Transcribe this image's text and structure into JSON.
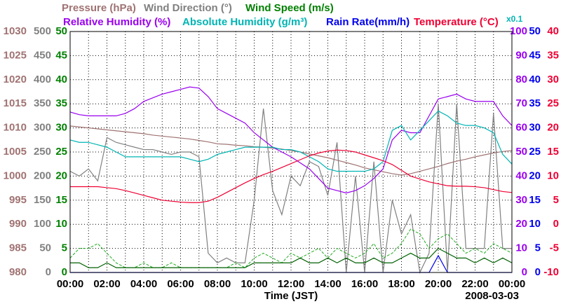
{
  "chart_data": {
    "type": "line",
    "xlabel": "Time (JST)",
    "date": "2008-03-03",
    "annotation": "x0.1",
    "grid": true,
    "x": [
      0,
      0.5,
      1,
      1.5,
      2,
      2.5,
      3,
      3.5,
      4,
      4.5,
      5,
      5.5,
      6,
      6.5,
      7,
      7.5,
      8,
      8.5,
      9,
      9.5,
      10,
      10.5,
      11,
      11.5,
      12,
      12.5,
      13,
      13.5,
      14,
      14.5,
      15,
      15.5,
      16,
      16.5,
      17,
      17.5,
      18,
      18.5,
      19,
      19.5,
      20,
      20.5,
      21,
      21.5,
      22,
      22.5,
      23,
      23.5,
      24
    ],
    "xlim": [
      0,
      24
    ],
    "xticks": [
      {
        "value": 0,
        "label": "00:00"
      },
      {
        "value": 2,
        "label": "02:00"
      },
      {
        "value": 4,
        "label": "04:00"
      },
      {
        "value": 6,
        "label": "06:00"
      },
      {
        "value": 8,
        "label": "08:00"
      },
      {
        "value": 10,
        "label": "10:00"
      },
      {
        "value": 12,
        "label": "12:00"
      },
      {
        "value": 14,
        "label": "14:00"
      },
      {
        "value": 16,
        "label": "16:00"
      },
      {
        "value": 18,
        "label": "18:00"
      },
      {
        "value": 20,
        "label": "20:00"
      },
      {
        "value": 22,
        "label": "22:00"
      },
      {
        "value": 24,
        "label": "00:00"
      }
    ],
    "series": [
      {
        "name": "Pressure (hPa)",
        "color": "#a07272",
        "side": "left",
        "ylim": [
          980,
          1030
        ],
        "yticks": [
          980,
          985,
          990,
          995,
          1000,
          1005,
          1010,
          1015,
          1020,
          1025,
          1030
        ],
        "values": [
          1010.4,
          1010.2,
          1010.0,
          1009.8,
          1009.6,
          1009.4,
          1009.2,
          1009.0,
          1008.8,
          1008.5,
          1008.3,
          1008.1,
          1007.9,
          1007.7,
          1007.4,
          1007.1,
          1006.7,
          1006.6,
          1006.4,
          1006.3,
          1006.1,
          1006.0,
          1005.8,
          1005.6,
          1005.3,
          1005.0,
          1004.6,
          1004.2,
          1003.8,
          1003.3,
          1002.8,
          1002.3,
          1001.7,
          1001.3,
          1000.9,
          1000.5,
          1000.2,
          1000.5,
          1001.0,
          1001.5,
          1002.0,
          1002.6,
          1003.1,
          1003.5,
          1004.0,
          1004.4,
          1004.8,
          1005.1,
          1005.3
        ]
      },
      {
        "name": "Wind Direction (°)",
        "color": "#808080",
        "side": "left",
        "ylim": [
          0,
          500
        ],
        "yticks": [
          0,
          50,
          100,
          150,
          200,
          250,
          300,
          350,
          400,
          450,
          500
        ],
        "values": [
          210,
          200,
          215,
          190,
          280,
          270,
          265,
          260,
          255,
          255,
          250,
          245,
          250,
          250,
          240,
          40,
          20,
          30,
          20,
          20,
          150,
          340,
          170,
          120,
          200,
          180,
          230,
          220,
          160,
          270,
          0,
          200,
          0,
          230,
          0,
          150,
          80,
          120,
          0,
          40,
          350,
          0,
          350,
          50,
          50,
          50,
          330,
          50,
          50
        ]
      },
      {
        "name": "Wind Speed (m/s)",
        "color": "#008000",
        "line_color": "#006000",
        "gust_color": "#22aa22",
        "side": "left",
        "ylim": [
          0,
          50
        ],
        "yticks": [
          0,
          5,
          10,
          15,
          20,
          25,
          30,
          35,
          40,
          45,
          50
        ],
        "values": [
          2,
          2,
          1,
          1,
          2,
          1,
          1,
          1,
          1,
          1,
          1,
          1,
          1,
          1,
          1,
          1,
          1,
          1,
          1,
          1,
          2,
          2,
          2,
          2,
          2,
          3,
          2,
          2,
          3,
          2,
          3,
          2,
          2,
          3,
          2,
          2,
          3,
          4,
          3,
          3,
          5,
          4,
          3,
          3,
          2,
          3,
          2,
          3,
          2
        ],
        "gust_values": [
          3,
          5,
          5,
          6,
          4,
          2,
          1,
          1,
          2,
          1,
          1,
          2,
          1,
          1,
          1,
          1,
          1,
          1,
          2,
          1,
          3,
          4,
          3,
          2,
          4,
          3,
          4,
          5,
          3,
          5,
          4,
          3,
          4,
          6,
          3,
          4,
          6,
          9,
          8,
          5,
          7,
          8,
          6,
          4,
          5,
          4,
          6,
          5,
          4
        ]
      },
      {
        "name": "Relative Humidity (%)",
        "color": "#9900ee",
        "side": "right",
        "ylim": [
          0,
          100
        ],
        "yticks": [
          0,
          10,
          20,
          30,
          40,
          50,
          60,
          70,
          80,
          90,
          100
        ],
        "values": [
          66.6,
          65.5,
          65,
          65,
          65,
          65,
          66,
          68,
          71,
          72.5,
          74,
          75,
          76,
          77,
          76.5,
          73,
          68,
          66,
          64,
          62,
          58,
          55,
          52,
          50,
          48,
          45.5,
          43,
          39,
          35,
          34,
          33,
          34,
          36,
          39,
          43,
          55,
          59,
          58,
          58,
          65,
          72,
          73,
          74,
          72,
          71,
          71,
          71,
          65,
          61
        ]
      },
      {
        "name": "Absolute Humidity (g/m³)",
        "color": "#00b4b4",
        "ylim": [
          0,
          10
        ],
        "values": [
          5.5,
          5.4,
          5.4,
          5.3,
          5.2,
          5.0,
          4.8,
          4.8,
          4.8,
          4.8,
          4.8,
          4.8,
          4.8,
          4.7,
          4.6,
          4.7,
          4.9,
          5.0,
          5.1,
          5.2,
          5.2,
          5.2,
          5.2,
          5.1,
          5.1,
          5.0,
          4.8,
          4.6,
          4.3,
          4.2,
          4.2,
          4.2,
          4.2,
          4.3,
          4.6,
          5.9,
          6.1,
          5.5,
          5.9,
          6.3,
          6.7,
          6.5,
          6.2,
          6.1,
          6.1,
          6.0,
          5.8,
          4.9,
          4.5
        ]
      },
      {
        "name": "Rain Rate(mm/h)",
        "color": "#0000ee",
        "side": "right",
        "ylim": [
          0,
          50
        ],
        "yticks": [
          0,
          5,
          10,
          15,
          20,
          25,
          30,
          35,
          40,
          45,
          50
        ],
        "values": [
          0,
          0,
          0,
          0,
          0,
          0,
          0,
          0,
          0,
          0,
          0,
          0,
          0,
          0,
          0,
          0,
          0,
          0,
          0,
          0,
          0,
          0,
          0,
          0,
          0,
          0,
          0,
          0,
          0,
          0,
          0,
          0,
          0,
          0,
          0,
          0,
          0,
          0,
          0,
          0,
          3.5,
          0,
          0,
          0,
          0,
          0,
          0,
          0,
          0
        ]
      },
      {
        "name": "Temperature (°C)",
        "color": "#ee0033",
        "side": "right",
        "ylim": [
          -10,
          40
        ],
        "yticks": [
          -10,
          -5,
          0,
          5,
          10,
          15,
          20,
          25,
          30,
          35,
          40
        ],
        "values": [
          7.8,
          7.8,
          7.8,
          7.8,
          7.6,
          7.4,
          7.0,
          6.5,
          6.0,
          5.5,
          5.0,
          4.8,
          4.6,
          4.5,
          4.5,
          4.8,
          5.6,
          6.6,
          7.6,
          8.6,
          9.5,
          10.3,
          11.0,
          11.8,
          12.6,
          13.4,
          14.2,
          14.8,
          15.2,
          15.4,
          15.3,
          15.0,
          14.4,
          13.8,
          13.2,
          12.4,
          11.2,
          10.0,
          9.4,
          8.8,
          8.4,
          8.0,
          7.9,
          7.9,
          7.8,
          7.6,
          7.2,
          6.8,
          6.6
        ]
      }
    ]
  }
}
